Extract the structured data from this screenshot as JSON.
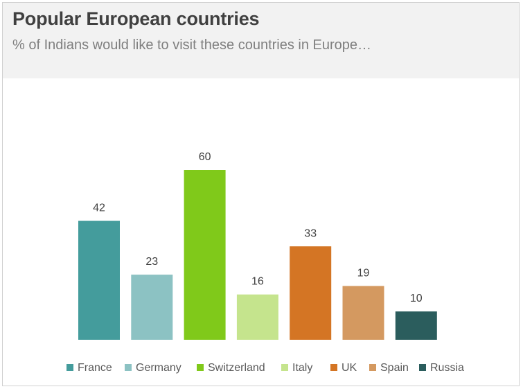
{
  "title": "Popular European countries",
  "subtitle": "% of Indians would like to visit these countries in Europe…",
  "chart_data": {
    "type": "bar",
    "title": "Popular European countries",
    "subtitle": "% of Indians would like to visit these countries in Europe…",
    "categories": [
      "France",
      "Germany",
      "Switzerland",
      "Italy",
      "UK",
      "Spain",
      "Russia"
    ],
    "values": [
      42,
      23,
      60,
      16,
      33,
      19,
      10
    ],
    "colors": [
      "#449c9c",
      "#8cc2c3",
      "#80c91a",
      "#c5e48d",
      "#d47524",
      "#d49960",
      "#2b5d5d"
    ],
    "ylim": [
      0,
      60
    ],
    "grid": false,
    "legend": "bottom",
    "data_labels": true
  }
}
